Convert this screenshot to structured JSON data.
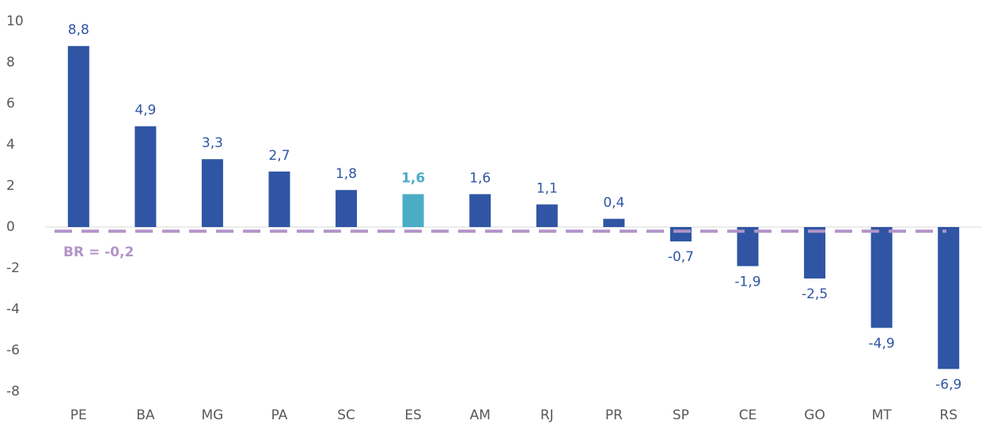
{
  "chart_data": {
    "type": "bar",
    "categories": [
      "PE",
      "BA",
      "MG",
      "PA",
      "SC",
      "ES",
      "AM",
      "RJ",
      "PR",
      "SP",
      "CE",
      "GO",
      "MT",
      "RS"
    ],
    "values": [
      8.8,
      4.9,
      3.3,
      2.7,
      1.8,
      1.6,
      1.6,
      1.1,
      0.4,
      -0.7,
      -1.9,
      -2.5,
      -4.9,
      -6.9
    ],
    "value_labels": [
      "8,8",
      "4,9",
      "3,3",
      "2,7",
      "1,8",
      "1,6",
      "1,6",
      "1,1",
      "0,4",
      "-0,7",
      "-1,9",
      "-2,5",
      "-4,9",
      "-6,9"
    ],
    "color": "#2f55a4",
    "highlight": "ES",
    "highlight_color": "#4bacc6",
    "ylim": [
      -8,
      10
    ],
    "yticks": [
      -8,
      -6,
      -4,
      -2,
      0,
      2,
      4,
      6,
      8,
      10
    ],
    "grid": false,
    "reference_line": {
      "value": -0.2,
      "label": "BR = -0,2",
      "color": "#b294c8"
    }
  }
}
